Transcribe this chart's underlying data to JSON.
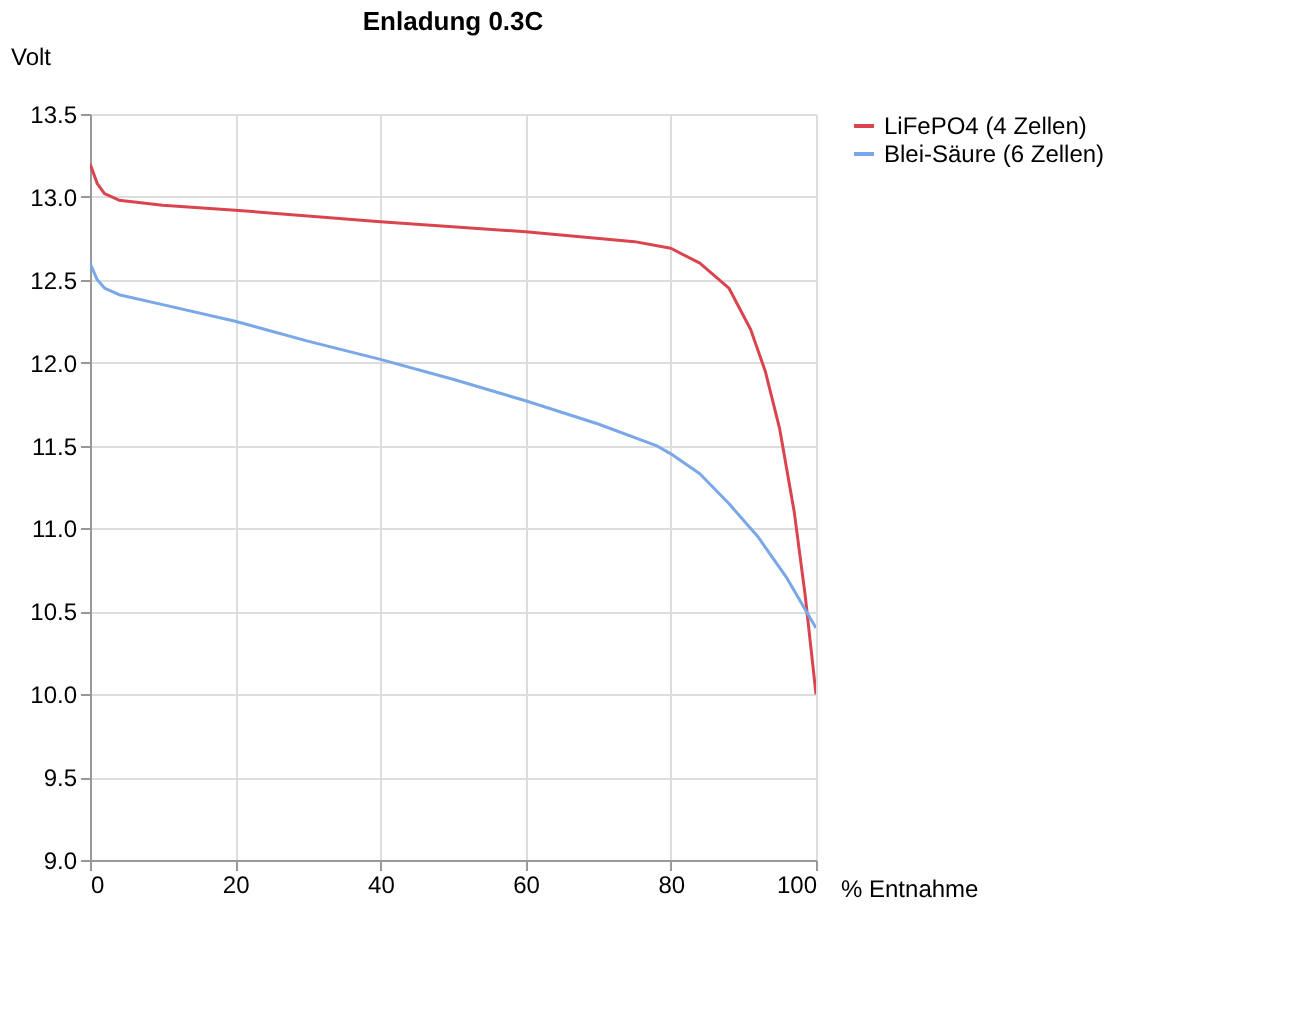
{
  "chart_data": {
    "type": "line",
    "title": "Enladung 0.3C",
    "xlabel": "% Entnahme",
    "ylabel": "Volt",
    "xlim": [
      0,
      100
    ],
    "xticks": [
      0,
      20,
      40,
      60,
      80,
      100
    ],
    "ylim": [
      9.0,
      13.5
    ],
    "yticks": [
      {
        "value": 9.0,
        "label": "9.0"
      },
      {
        "value": 9.5,
        "label": "9.5"
      },
      {
        "value": 10.0,
        "label": "10.0"
      },
      {
        "value": 10.5,
        "label": "10.5"
      },
      {
        "value": 11.0,
        "label": "11.0"
      },
      {
        "value": 11.5,
        "label": "11.5"
      },
      {
        "value": 12.0,
        "label": "12.0"
      },
      {
        "value": 12.5,
        "label": "12.5"
      },
      {
        "value": 13.0,
        "label": "13.0"
      },
      {
        "value": 13.5,
        "label": "13.5"
      }
    ],
    "grid": true,
    "legend": "right",
    "marker": "none",
    "line_style": "solid",
    "series": [
      {
        "name": "LiFePO4 (4 Zellen)",
        "color": "#d9444f",
        "x": [
          0,
          1,
          2,
          4,
          10,
          20,
          40,
          60,
          75,
          80,
          84,
          88,
          91,
          93,
          95,
          97,
          98.5,
          100
        ],
        "values": [
          13.2,
          13.08,
          13.02,
          12.98,
          12.95,
          12.92,
          12.85,
          12.79,
          12.73,
          12.69,
          12.6,
          12.45,
          12.2,
          11.95,
          11.6,
          11.1,
          10.6,
          10.0
        ]
      },
      {
        "name": "Blei-Säure (6 Zellen)",
        "color": "#7aa7e8",
        "x": [
          0,
          1,
          2,
          4,
          10,
          20,
          30,
          40,
          50,
          60,
          70,
          78,
          80,
          84,
          88,
          92,
          96,
          100
        ],
        "values": [
          12.6,
          12.5,
          12.45,
          12.41,
          12.35,
          12.25,
          12.13,
          12.02,
          11.9,
          11.77,
          11.63,
          11.5,
          11.45,
          11.33,
          11.15,
          10.95,
          10.7,
          10.4
        ]
      }
    ]
  }
}
